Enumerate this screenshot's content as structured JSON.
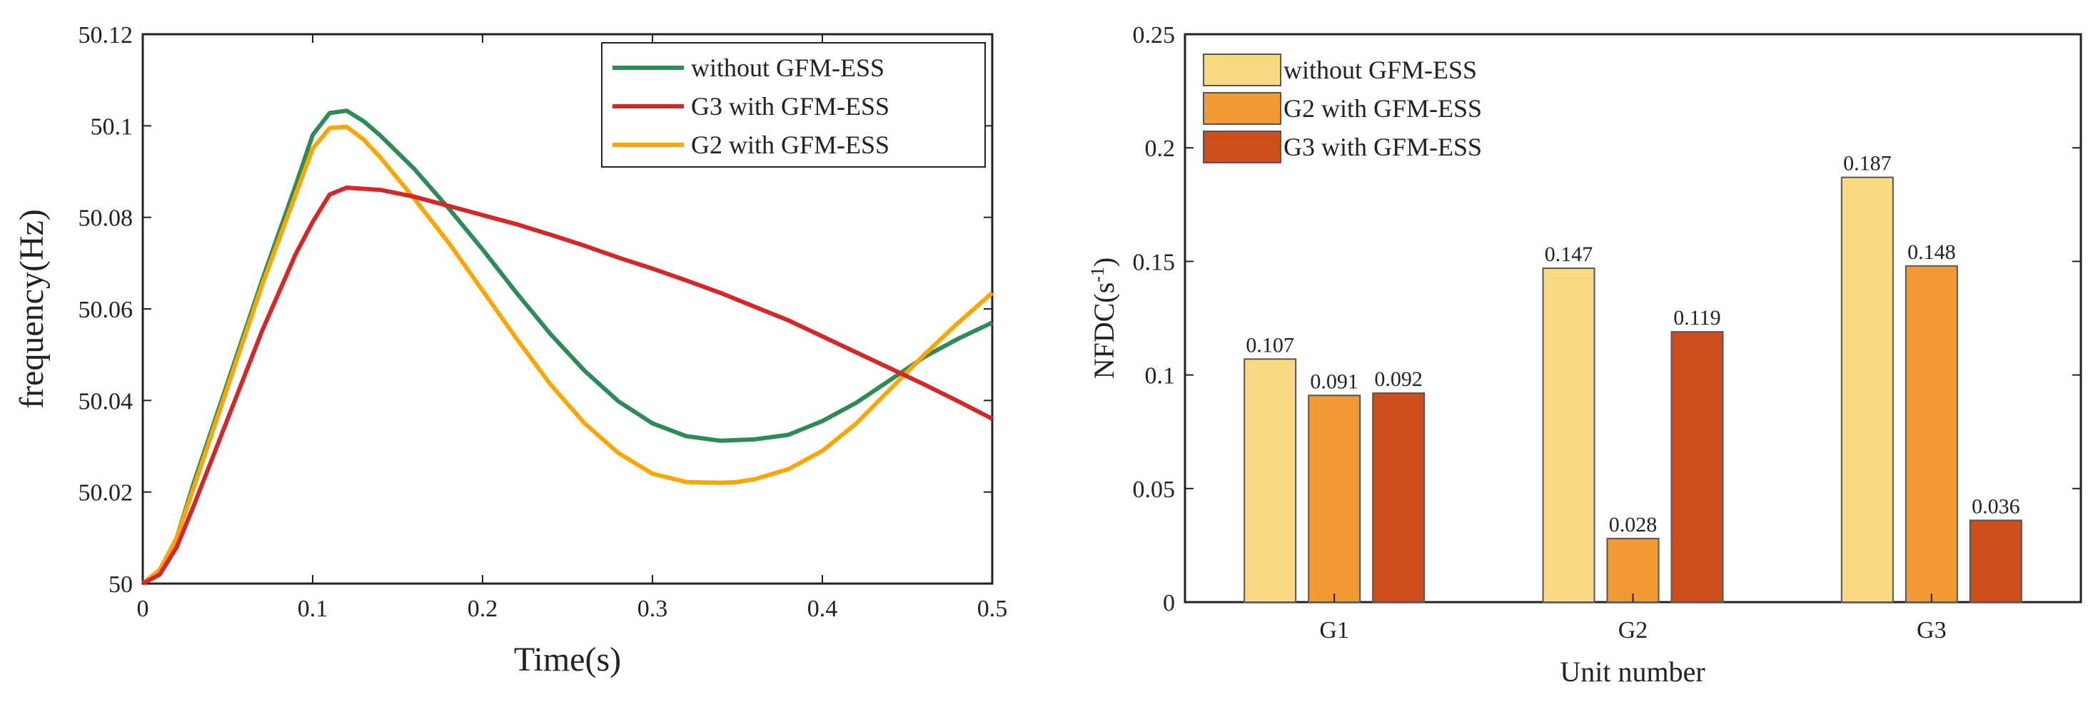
{
  "chart_data": [
    {
      "type": "line",
      "title": "",
      "xlabel": "Time(s)",
      "ylabel": "frequency(Hz)",
      "xlim": [
        0,
        0.5
      ],
      "ylim": [
        50,
        50.12
      ],
      "xticks": [
        "0",
        "0.1",
        "0.2",
        "0.3",
        "0.4",
        "0.5"
      ],
      "yticks": [
        "50",
        "50.02",
        "50.04",
        "50.06",
        "50.08",
        "50.1",
        "50.12"
      ],
      "legend_position": "top-right",
      "series": [
        {
          "name": "without GFM-ESS",
          "color": "#2e8b57",
          "x": [
            0,
            0.01,
            0.02,
            0.03,
            0.05,
            0.07,
            0.09,
            0.1,
            0.11,
            0.12,
            0.13,
            0.14,
            0.16,
            0.18,
            0.2,
            0.22,
            0.24,
            0.26,
            0.28,
            0.3,
            0.32,
            0.34,
            0.36,
            0.38,
            0.4,
            0.42,
            0.44,
            0.46,
            0.48,
            0.5
          ],
          "y": [
            50,
            50.003,
            50.01,
            50.022,
            50.044,
            50.066,
            50.087,
            50.098,
            50.1028,
            50.1033,
            50.101,
            50.0978,
            50.0905,
            50.082,
            50.073,
            50.0635,
            50.0545,
            50.0465,
            50.0398,
            50.035,
            50.0322,
            50.0312,
            50.0315,
            50.0325,
            50.0355,
            50.0395,
            50.0445,
            50.0495,
            50.0535,
            50.057
          ]
        },
        {
          "name": "G3 with GFM-ESS",
          "color": "#d62728",
          "x": [
            0,
            0.01,
            0.02,
            0.03,
            0.05,
            0.07,
            0.09,
            0.1,
            0.11,
            0.12,
            0.14,
            0.16,
            0.18,
            0.2,
            0.22,
            0.24,
            0.26,
            0.28,
            0.3,
            0.32,
            0.34,
            0.36,
            0.38,
            0.4,
            0.42,
            0.44,
            0.46,
            0.48,
            0.5
          ],
          "y": [
            50,
            50.002,
            50.008,
            50.017,
            50.036,
            50.055,
            50.072,
            50.079,
            50.085,
            50.0865,
            50.086,
            50.0845,
            50.0825,
            50.0805,
            50.0785,
            50.0762,
            50.0738,
            50.0712,
            50.0688,
            50.0662,
            50.0635,
            50.0605,
            50.0575,
            50.054,
            50.0505,
            50.047,
            50.0435,
            50.0398,
            50.036
          ]
        },
        {
          "name": "G2 with GFM-ESS",
          "color": "#ffa500",
          "x": [
            0,
            0.01,
            0.02,
            0.03,
            0.05,
            0.07,
            0.09,
            0.1,
            0.11,
            0.12,
            0.13,
            0.14,
            0.16,
            0.18,
            0.2,
            0.22,
            0.24,
            0.26,
            0.28,
            0.3,
            0.32,
            0.34,
            0.35,
            0.36,
            0.38,
            0.4,
            0.42,
            0.44,
            0.46,
            0.48,
            0.5
          ],
          "y": [
            50,
            50.003,
            50.01,
            50.021,
            50.043,
            50.065,
            50.085,
            50.095,
            50.0995,
            50.0998,
            50.097,
            50.093,
            50.084,
            50.0745,
            50.064,
            50.0535,
            50.0435,
            50.035,
            50.0285,
            50.024,
            50.0222,
            50.022,
            50.0222,
            50.0228,
            50.025,
            50.029,
            50.035,
            50.0425,
            50.05,
            50.057,
            50.0635
          ]
        }
      ]
    },
    {
      "type": "bar",
      "title": "",
      "xlabel": "Unit number",
      "ylabel": "NFDC(s",
      "ylabel_sup": "-1",
      "ylabel_tail": ")",
      "ylim": [
        0,
        0.25
      ],
      "yticks": [
        "0",
        "0.05",
        "0.1",
        "0.15",
        "0.2",
        "0.25"
      ],
      "categories": [
        "G1",
        "G2",
        "G3"
      ],
      "legend_position": "top-left",
      "series": [
        {
          "name": "without GFM-ESS",
          "color": "#fad985",
          "values": [
            0.107,
            0.147,
            0.187
          ],
          "labels": [
            "0.107",
            "0.147",
            "0.187"
          ]
        },
        {
          "name": "G2 with GFM-ESS",
          "color": "#f39a35",
          "values": [
            0.091,
            0.028,
            0.148
          ],
          "labels": [
            "0.091",
            "0.028",
            "0.148"
          ]
        },
        {
          "name": "G3 with GFM-ESS",
          "color": "#cd4e1c",
          "values": [
            0.092,
            0.119,
            0.036
          ],
          "labels": [
            "0.092",
            "0.119",
            "0.036"
          ]
        }
      ]
    }
  ]
}
